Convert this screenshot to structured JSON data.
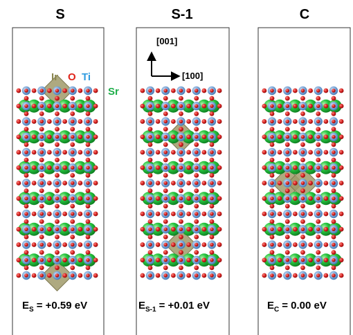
{
  "panels": [
    {
      "id": "s",
      "title": "S",
      "energy": {
        "main": "E",
        "sub": "S",
        "value": "= +0.59 eV"
      },
      "ir_sites": [
        [
          2,
          0
        ],
        [
          2,
          12
        ]
      ]
    },
    {
      "id": "s1",
      "title": "S-1",
      "energy": {
        "main": "E",
        "sub": "S-1",
        "value": "= +0.01 eV"
      },
      "ir_sites": [
        [
          2,
          3
        ],
        [
          2,
          10
        ]
      ]
    },
    {
      "id": "c",
      "title": "C",
      "energy": {
        "main": "E",
        "sub": "C",
        "value": "= 0.00 eV"
      },
      "ir_sites": [
        [
          1,
          6
        ],
        [
          2,
          6
        ]
      ]
    }
  ],
  "axes": {
    "vertical": "[001]",
    "horizontal": "[100]"
  },
  "legend": [
    {
      "label": "Ir",
      "color": "#8b8650"
    },
    {
      "label": "O",
      "color": "#e0251b"
    },
    {
      "label": "Ti",
      "color": "#2f9be0"
    },
    {
      "label": "Sr",
      "color": "#1fae4a"
    }
  ],
  "colors": {
    "sr": "#22c23a",
    "ti": "#7fa9d6",
    "o": "#d42020",
    "ir_octahedron": "#a09a6a"
  }
}
